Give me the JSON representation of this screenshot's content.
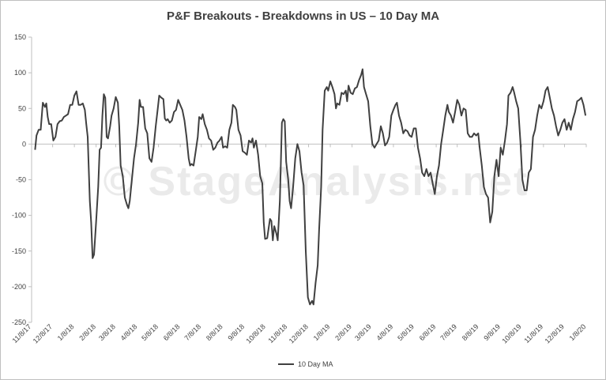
{
  "chart_data": {
    "type": "line",
    "title": "P&F Breakouts - Breakdowns in US – 10 Day MA",
    "watermark": "© StageAnalysis.net",
    "xlabel": "",
    "ylabel": "",
    "ylim": [
      -250,
      150
    ],
    "yticks": [
      "150",
      "100",
      "50",
      "0",
      "-50",
      "-100",
      "-150",
      "-200",
      "-250"
    ],
    "xlim": [
      "2017-11-08",
      "2020-01-08"
    ],
    "xticks": [
      "11/8/17",
      "12/8/17",
      "1/8/18",
      "2/8/18",
      "3/8/18",
      "4/8/18",
      "5/8/18",
      "6/8/18",
      "7/8/18",
      "8/8/18",
      "9/8/18",
      "10/8/18",
      "11/8/18",
      "12/8/18",
      "1/8/19",
      "2/8/19",
      "3/8/19",
      "4/8/19",
      "5/8/19",
      "6/8/19",
      "7/8/19",
      "8/8/19",
      "9/8/19",
      "10/8/19",
      "11/8/19",
      "12/8/19",
      "1/8/20"
    ],
    "grid": false,
    "legend": "bottom",
    "series_color": "#404040",
    "series": [
      {
        "name": "10 Day MA",
        "points": [
          [
            "2017-11-13",
            -8
          ],
          [
            "2017-11-15",
            12
          ],
          [
            "2017-11-18",
            20
          ],
          [
            "2017-11-21",
            20
          ],
          [
            "2017-11-24",
            58
          ],
          [
            "2017-11-27",
            52
          ],
          [
            "2017-11-29",
            57
          ],
          [
            "2017-12-01",
            38
          ],
          [
            "2017-12-03",
            28
          ],
          [
            "2017-12-06",
            28
          ],
          [
            "2017-12-09",
            5
          ],
          [
            "2017-12-12",
            10
          ],
          [
            "2017-12-15",
            28
          ],
          [
            "2017-12-18",
            32
          ],
          [
            "2017-12-21",
            33
          ],
          [
            "2017-12-24",
            38
          ],
          [
            "2017-12-27",
            40
          ],
          [
            "2017-12-30",
            42
          ],
          [
            "2018-01-02",
            55
          ],
          [
            "2018-01-05",
            55
          ],
          [
            "2018-01-08",
            68
          ],
          [
            "2018-01-11",
            74
          ],
          [
            "2018-01-14",
            55
          ],
          [
            "2018-01-17",
            55
          ],
          [
            "2018-01-20",
            57
          ],
          [
            "2018-01-23",
            48
          ],
          [
            "2018-01-25",
            28
          ],
          [
            "2018-01-27",
            10
          ],
          [
            "2018-01-30",
            -80
          ],
          [
            "2018-02-01",
            -110
          ],
          [
            "2018-02-03",
            -160
          ],
          [
            "2018-02-05",
            -155
          ],
          [
            "2018-02-08",
            -110
          ],
          [
            "2018-02-11",
            -60
          ],
          [
            "2018-02-13",
            -8
          ],
          [
            "2018-02-15",
            -5
          ],
          [
            "2018-02-17",
            40
          ],
          [
            "2018-02-19",
            70
          ],
          [
            "2018-02-21",
            65
          ],
          [
            "2018-02-23",
            10
          ],
          [
            "2018-02-25",
            8
          ],
          [
            "2018-02-28",
            25
          ],
          [
            "2018-03-02",
            40
          ],
          [
            "2018-03-05",
            50
          ],
          [
            "2018-03-08",
            66
          ],
          [
            "2018-03-11",
            58
          ],
          [
            "2018-03-13",
            25
          ],
          [
            "2018-03-15",
            -30
          ],
          [
            "2018-03-18",
            -45
          ],
          [
            "2018-03-21",
            -75
          ],
          [
            "2018-03-24",
            -85
          ],
          [
            "2018-03-26",
            -90
          ],
          [
            "2018-03-28",
            -80
          ],
          [
            "2018-03-31",
            -50
          ],
          [
            "2018-04-03",
            -20
          ],
          [
            "2018-04-06",
            0
          ],
          [
            "2018-04-09",
            30
          ],
          [
            "2018-04-11",
            62
          ],
          [
            "2018-04-13",
            52
          ],
          [
            "2018-04-16",
            52
          ],
          [
            "2018-04-19",
            22
          ],
          [
            "2018-04-22",
            15
          ],
          [
            "2018-04-25",
            -20
          ],
          [
            "2018-04-28",
            -25
          ],
          [
            "2018-05-01",
            -5
          ],
          [
            "2018-05-04",
            25
          ],
          [
            "2018-05-07",
            50
          ],
          [
            "2018-05-09",
            68
          ],
          [
            "2018-05-12",
            65
          ],
          [
            "2018-05-15",
            63
          ],
          [
            "2018-05-17",
            36
          ],
          [
            "2018-05-19",
            33
          ],
          [
            "2018-05-21",
            35
          ],
          [
            "2018-05-24",
            30
          ],
          [
            "2018-05-27",
            33
          ],
          [
            "2018-05-30",
            45
          ],
          [
            "2018-06-02",
            48
          ],
          [
            "2018-06-05",
            62
          ],
          [
            "2018-06-08",
            55
          ],
          [
            "2018-06-11",
            48
          ],
          [
            "2018-06-14",
            33
          ],
          [
            "2018-06-17",
            10
          ],
          [
            "2018-06-20",
            -20
          ],
          [
            "2018-06-22",
            -30
          ],
          [
            "2018-06-24",
            -28
          ],
          [
            "2018-06-27",
            -30
          ],
          [
            "2018-06-30",
            -10
          ],
          [
            "2018-07-03",
            10
          ],
          [
            "2018-07-05",
            38
          ],
          [
            "2018-07-08",
            35
          ],
          [
            "2018-07-10",
            42
          ],
          [
            "2018-07-13",
            28
          ],
          [
            "2018-07-16",
            20
          ],
          [
            "2018-07-19",
            8
          ],
          [
            "2018-07-22",
            5
          ],
          [
            "2018-07-25",
            -8
          ],
          [
            "2018-07-28",
            -5
          ],
          [
            "2018-07-31",
            2
          ],
          [
            "2018-08-03",
            5
          ],
          [
            "2018-08-06",
            10
          ],
          [
            "2018-08-08",
            -5
          ],
          [
            "2018-08-11",
            -3
          ],
          [
            "2018-08-14",
            -5
          ],
          [
            "2018-08-17",
            20
          ],
          [
            "2018-08-20",
            30
          ],
          [
            "2018-08-22",
            55
          ],
          [
            "2018-08-25",
            52
          ],
          [
            "2018-08-27",
            48
          ],
          [
            "2018-08-30",
            20
          ],
          [
            "2018-09-02",
            12
          ],
          [
            "2018-09-05",
            -10
          ],
          [
            "2018-09-08",
            -12
          ],
          [
            "2018-09-11",
            -15
          ],
          [
            "2018-09-14",
            5
          ],
          [
            "2018-09-17",
            2
          ],
          [
            "2018-09-19",
            8
          ],
          [
            "2018-09-21",
            -5
          ],
          [
            "2018-09-24",
            5
          ],
          [
            "2018-09-27",
            -15
          ],
          [
            "2018-09-30",
            -45
          ],
          [
            "2018-10-03",
            -55
          ],
          [
            "2018-10-05",
            -110
          ],
          [
            "2018-10-07",
            -133
          ],
          [
            "2018-10-10",
            -132
          ],
          [
            "2018-10-12",
            -118
          ],
          [
            "2018-10-14",
            -105
          ],
          [
            "2018-10-16",
            -108
          ],
          [
            "2018-10-18",
            -135
          ],
          [
            "2018-10-20",
            -115
          ],
          [
            "2018-10-23",
            -125
          ],
          [
            "2018-10-25",
            -135
          ],
          [
            "2018-10-28",
            -80
          ],
          [
            "2018-10-31",
            30
          ],
          [
            "2018-11-02",
            35
          ],
          [
            "2018-11-04",
            32
          ],
          [
            "2018-11-06",
            -25
          ],
          [
            "2018-11-09",
            -50
          ],
          [
            "2018-11-11",
            -80
          ],
          [
            "2018-11-13",
            -90
          ],
          [
            "2018-11-16",
            -60
          ],
          [
            "2018-11-19",
            -20
          ],
          [
            "2018-11-22",
            0
          ],
          [
            "2018-11-25",
            -10
          ],
          [
            "2018-11-28",
            -40
          ],
          [
            "2018-12-01",
            -58
          ],
          [
            "2018-12-04",
            -150
          ],
          [
            "2018-12-07",
            -215
          ],
          [
            "2018-12-10",
            -225
          ],
          [
            "2018-12-13",
            -220
          ],
          [
            "2018-12-15",
            -225
          ],
          [
            "2018-12-18",
            -195
          ],
          [
            "2018-12-21",
            -170
          ],
          [
            "2018-12-23",
            -120
          ],
          [
            "2018-12-26",
            -60
          ],
          [
            "2018-12-28",
            20
          ],
          [
            "2018-12-31",
            75
          ],
          [
            "2019-01-03",
            80
          ],
          [
            "2019-01-05",
            75
          ],
          [
            "2019-01-08",
            88
          ],
          [
            "2019-01-11",
            80
          ],
          [
            "2019-01-14",
            70
          ],
          [
            "2019-01-16",
            50
          ],
          [
            "2019-01-18",
            57
          ],
          [
            "2019-01-21",
            55
          ],
          [
            "2019-01-24",
            72
          ],
          [
            "2019-01-27",
            70
          ],
          [
            "2019-01-30",
            75
          ],
          [
            "2019-02-01",
            60
          ],
          [
            "2019-02-03",
            82
          ],
          [
            "2019-02-06",
            72
          ],
          [
            "2019-02-09",
            70
          ],
          [
            "2019-02-12",
            78
          ],
          [
            "2019-02-15",
            80
          ],
          [
            "2019-02-18",
            90
          ],
          [
            "2019-02-21",
            97
          ],
          [
            "2019-02-23",
            105
          ],
          [
            "2019-02-25",
            80
          ],
          [
            "2019-02-28",
            70
          ],
          [
            "2019-03-03",
            60
          ],
          [
            "2019-03-06",
            25
          ],
          [
            "2019-03-09",
            0
          ],
          [
            "2019-03-12",
            -5
          ],
          [
            "2019-03-15",
            0
          ],
          [
            "2019-03-18",
            5
          ],
          [
            "2019-03-21",
            25
          ],
          [
            "2019-03-24",
            15
          ],
          [
            "2019-03-27",
            -2
          ],
          [
            "2019-03-30",
            2
          ],
          [
            "2019-04-02",
            10
          ],
          [
            "2019-04-05",
            40
          ],
          [
            "2019-04-08",
            48
          ],
          [
            "2019-04-11",
            55
          ],
          [
            "2019-04-13",
            58
          ],
          [
            "2019-04-16",
            40
          ],
          [
            "2019-04-19",
            30
          ],
          [
            "2019-04-22",
            15
          ],
          [
            "2019-04-25",
            20
          ],
          [
            "2019-04-28",
            18
          ],
          [
            "2019-05-01",
            12
          ],
          [
            "2019-05-04",
            10
          ],
          [
            "2019-05-07",
            22
          ],
          [
            "2019-05-10",
            22
          ],
          [
            "2019-05-13",
            -5
          ],
          [
            "2019-05-16",
            -20
          ],
          [
            "2019-05-19",
            -40
          ],
          [
            "2019-05-22",
            -45
          ],
          [
            "2019-05-25",
            -35
          ],
          [
            "2019-05-28",
            -45
          ],
          [
            "2019-05-31",
            -40
          ],
          [
            "2019-06-03",
            -55
          ],
          [
            "2019-06-06",
            -70
          ],
          [
            "2019-06-09",
            -45
          ],
          [
            "2019-06-12",
            -30
          ],
          [
            "2019-06-15",
            0
          ],
          [
            "2019-06-18",
            20
          ],
          [
            "2019-06-21",
            40
          ],
          [
            "2019-06-24",
            55
          ],
          [
            "2019-06-26",
            45
          ],
          [
            "2019-06-29",
            40
          ],
          [
            "2019-07-02",
            30
          ],
          [
            "2019-07-05",
            45
          ],
          [
            "2019-07-08",
            62
          ],
          [
            "2019-07-11",
            55
          ],
          [
            "2019-07-14",
            40
          ],
          [
            "2019-07-17",
            50
          ],
          [
            "2019-07-20",
            48
          ],
          [
            "2019-07-23",
            15
          ],
          [
            "2019-07-26",
            10
          ],
          [
            "2019-07-29",
            10
          ],
          [
            "2019-08-01",
            15
          ],
          [
            "2019-08-04",
            12
          ],
          [
            "2019-08-07",
            15
          ],
          [
            "2019-08-09",
            -5
          ],
          [
            "2019-08-12",
            -30
          ],
          [
            "2019-08-15",
            -60
          ],
          [
            "2019-08-18",
            -70
          ],
          [
            "2019-08-21",
            -75
          ],
          [
            "2019-08-24",
            -110
          ],
          [
            "2019-08-27",
            -95
          ],
          [
            "2019-08-30",
            -45
          ],
          [
            "2019-09-02",
            -22
          ],
          [
            "2019-09-05",
            -45
          ],
          [
            "2019-09-08",
            -5
          ],
          [
            "2019-09-11",
            -15
          ],
          [
            "2019-09-14",
            5
          ],
          [
            "2019-09-17",
            28
          ],
          [
            "2019-09-19",
            68
          ],
          [
            "2019-09-22",
            72
          ],
          [
            "2019-09-25",
            80
          ],
          [
            "2019-09-27",
            73
          ],
          [
            "2019-09-30",
            60
          ],
          [
            "2019-10-03",
            50
          ],
          [
            "2019-10-06",
            5
          ],
          [
            "2019-10-09",
            -50
          ],
          [
            "2019-10-12",
            -65
          ],
          [
            "2019-10-15",
            -65
          ],
          [
            "2019-10-18",
            -40
          ],
          [
            "2019-10-21",
            -35
          ],
          [
            "2019-10-24",
            10
          ],
          [
            "2019-10-27",
            20
          ],
          [
            "2019-10-30",
            40
          ],
          [
            "2019-11-02",
            55
          ],
          [
            "2019-11-05",
            50
          ],
          [
            "2019-11-08",
            60
          ],
          [
            "2019-11-11",
            75
          ],
          [
            "2019-11-14",
            80
          ],
          [
            "2019-11-17",
            65
          ],
          [
            "2019-11-20",
            50
          ],
          [
            "2019-11-23",
            40
          ],
          [
            "2019-11-26",
            25
          ],
          [
            "2019-11-29",
            12
          ],
          [
            "2019-12-02",
            20
          ],
          [
            "2019-12-05",
            30
          ],
          [
            "2019-12-08",
            35
          ],
          [
            "2019-12-11",
            20
          ],
          [
            "2019-12-14",
            30
          ],
          [
            "2019-12-17",
            20
          ],
          [
            "2019-12-20",
            35
          ],
          [
            "2019-12-23",
            45
          ],
          [
            "2019-12-26",
            60
          ],
          [
            "2019-12-29",
            62
          ],
          [
            "2020-01-01",
            65
          ],
          [
            "2020-01-04",
            55
          ],
          [
            "2020-01-07",
            40
          ]
        ]
      }
    ]
  }
}
